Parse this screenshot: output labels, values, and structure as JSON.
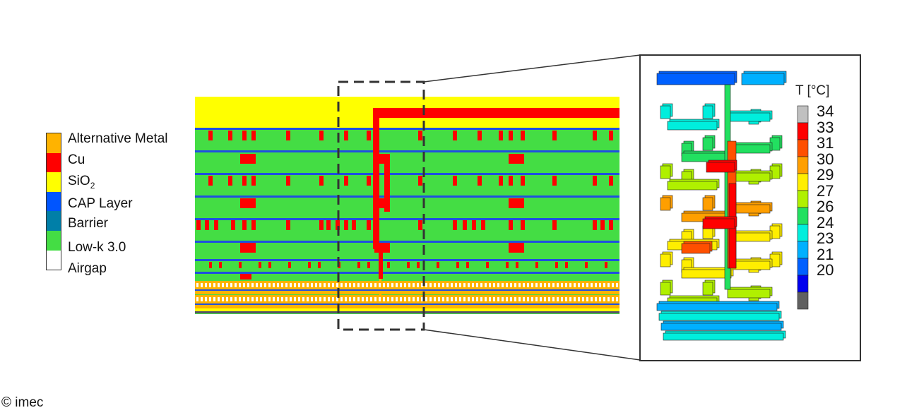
{
  "legend": {
    "items": [
      {
        "label": "Alternative Metal",
        "color": "#FFB300"
      },
      {
        "label": "Cu",
        "color": "#FF0000"
      },
      {
        "label": "SiO",
        "sub": "2",
        "color": "#FFFF00"
      },
      {
        "label": "CAP Layer",
        "color": "#0055FF"
      },
      {
        "label": "Barrier",
        "color": "#007FA8"
      },
      {
        "label": "Low-k 3.0",
        "color": "#44DD44"
      },
      {
        "label": "Airgap",
        "color": "#FFFFFF"
      }
    ]
  },
  "colorbar": {
    "title": "T [°C]",
    "ticks": [
      "34",
      "33",
      "31",
      "30",
      "29",
      "27",
      "26",
      "24",
      "23",
      "21",
      "20"
    ],
    "colors": [
      "#C0C0C0",
      "#FF0000",
      "#FF5000",
      "#FF9F00",
      "#FFEE00",
      "#B0F000",
      "#22E060",
      "#00EEDD",
      "#00B0FF",
      "#0060FF",
      "#0000EE",
      "#606060"
    ]
  },
  "copyright": "© imec"
}
